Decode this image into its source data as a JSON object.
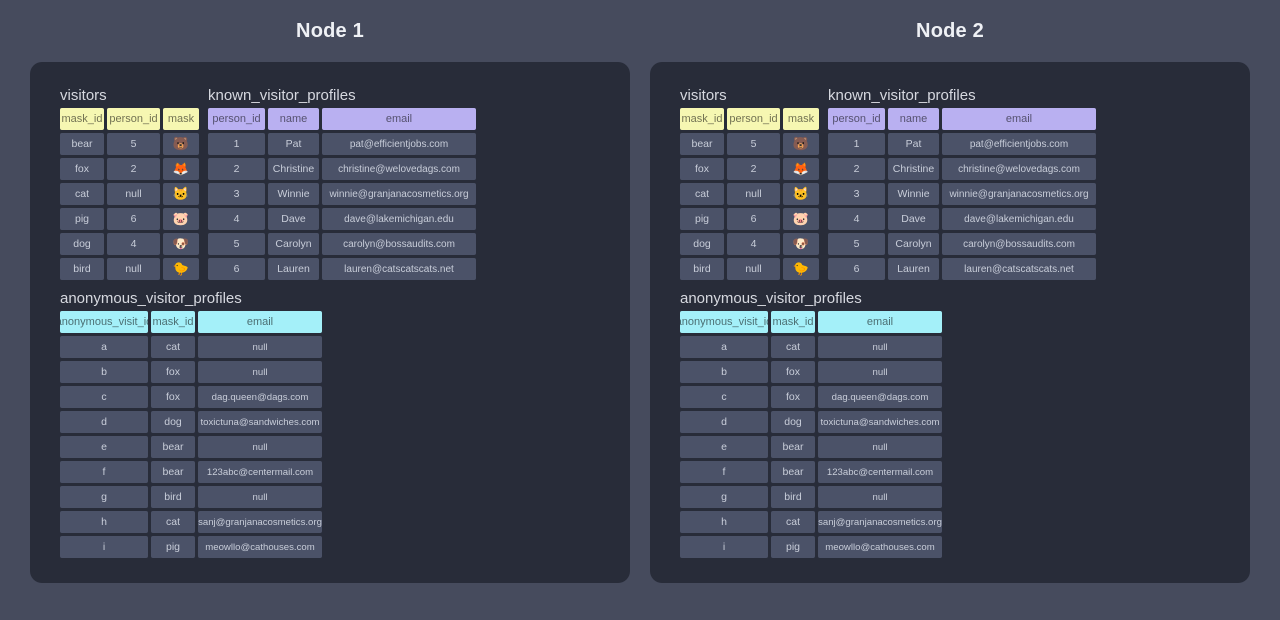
{
  "colors": {
    "page_bg": "#464b5d",
    "panel_bg": "#282c39",
    "cell_bg": "#4b5268",
    "cell_text": "#c8cdd9",
    "label_text": "#d6d8df",
    "title_text": "#eff1f5",
    "header_yellow": "#f6f7b2",
    "header_purple": "#b9b0f1",
    "header_cyan": "#a4f0f9"
  },
  "nodes": [
    {
      "title": "Node 1",
      "visitors": {
        "label": "visitors",
        "headers": [
          "mask_id",
          "person_id",
          "mask"
        ],
        "rows": [
          [
            "bear",
            "5",
            "🐻"
          ],
          [
            "fox",
            "2",
            "🦊"
          ],
          [
            "cat",
            "null",
            "🐱"
          ],
          [
            "pig",
            "6",
            "🐷"
          ],
          [
            "dog",
            "4",
            "🐶"
          ],
          [
            "bird",
            "null",
            "🐤"
          ]
        ]
      },
      "known_visitor_profiles": {
        "label": "known_visitor_profiles",
        "headers": [
          "person_id",
          "name",
          "email"
        ],
        "rows": [
          [
            "1",
            "Pat",
            "pat@efficientjobs.com"
          ],
          [
            "2",
            "Christine",
            "christine@welovedags.com"
          ],
          [
            "3",
            "Winnie",
            "winnie@granjanacosmetics.org"
          ],
          [
            "4",
            "Dave",
            "dave@lakemichigan.edu"
          ],
          [
            "5",
            "Carolyn",
            "carolyn@bossaudits.com"
          ],
          [
            "6",
            "Lauren",
            "lauren@catscatscats.net"
          ]
        ]
      },
      "anonymous_visitor_profiles": {
        "label": "anonymous_visitor_profiles",
        "headers": [
          "anonymous_visit_id",
          "mask_id",
          "email"
        ],
        "rows": [
          [
            "a",
            "cat",
            "null"
          ],
          [
            "b",
            "fox",
            "null"
          ],
          [
            "c",
            "fox",
            "dag.queen@dags.com"
          ],
          [
            "d",
            "dog",
            "toxictuna@sandwiches.com"
          ],
          [
            "e",
            "bear",
            "null"
          ],
          [
            "f",
            "bear",
            "123abc@centermail.com"
          ],
          [
            "g",
            "bird",
            "null"
          ],
          [
            "h",
            "cat",
            "sanj@granjanacosmetics.org"
          ],
          [
            "i",
            "pig",
            "meowllo@cathouses.com"
          ]
        ]
      }
    },
    {
      "title": "Node 2",
      "visitors": {
        "label": "visitors",
        "headers": [
          "mask_id",
          "person_id",
          "mask"
        ],
        "rows": [
          [
            "bear",
            "5",
            "🐻"
          ],
          [
            "fox",
            "2",
            "🦊"
          ],
          [
            "cat",
            "null",
            "🐱"
          ],
          [
            "pig",
            "6",
            "🐷"
          ],
          [
            "dog",
            "4",
            "🐶"
          ],
          [
            "bird",
            "null",
            "🐤"
          ]
        ]
      },
      "known_visitor_profiles": {
        "label": "known_visitor_profiles",
        "headers": [
          "person_id",
          "name",
          "email"
        ],
        "rows": [
          [
            "1",
            "Pat",
            "pat@efficientjobs.com"
          ],
          [
            "2",
            "Christine",
            "christine@welovedags.com"
          ],
          [
            "3",
            "Winnie",
            "winnie@granjanacosmetics.org"
          ],
          [
            "4",
            "Dave",
            "dave@lakemichigan.edu"
          ],
          [
            "5",
            "Carolyn",
            "carolyn@bossaudits.com"
          ],
          [
            "6",
            "Lauren",
            "lauren@catscatscats.net"
          ]
        ]
      },
      "anonymous_visitor_profiles": {
        "label": "anonymous_visitor_profiles",
        "headers": [
          "anonymous_visit_id",
          "mask_id",
          "email"
        ],
        "rows": [
          [
            "a",
            "cat",
            "null"
          ],
          [
            "b",
            "fox",
            "null"
          ],
          [
            "c",
            "fox",
            "dag.queen@dags.com"
          ],
          [
            "d",
            "dog",
            "toxictuna@sandwiches.com"
          ],
          [
            "e",
            "bear",
            "null"
          ],
          [
            "f",
            "bear",
            "123abc@centermail.com"
          ],
          [
            "g",
            "bird",
            "null"
          ],
          [
            "h",
            "cat",
            "sanj@granjanacosmetics.org"
          ],
          [
            "i",
            "pig",
            "meowllo@cathouses.com"
          ]
        ]
      }
    }
  ]
}
